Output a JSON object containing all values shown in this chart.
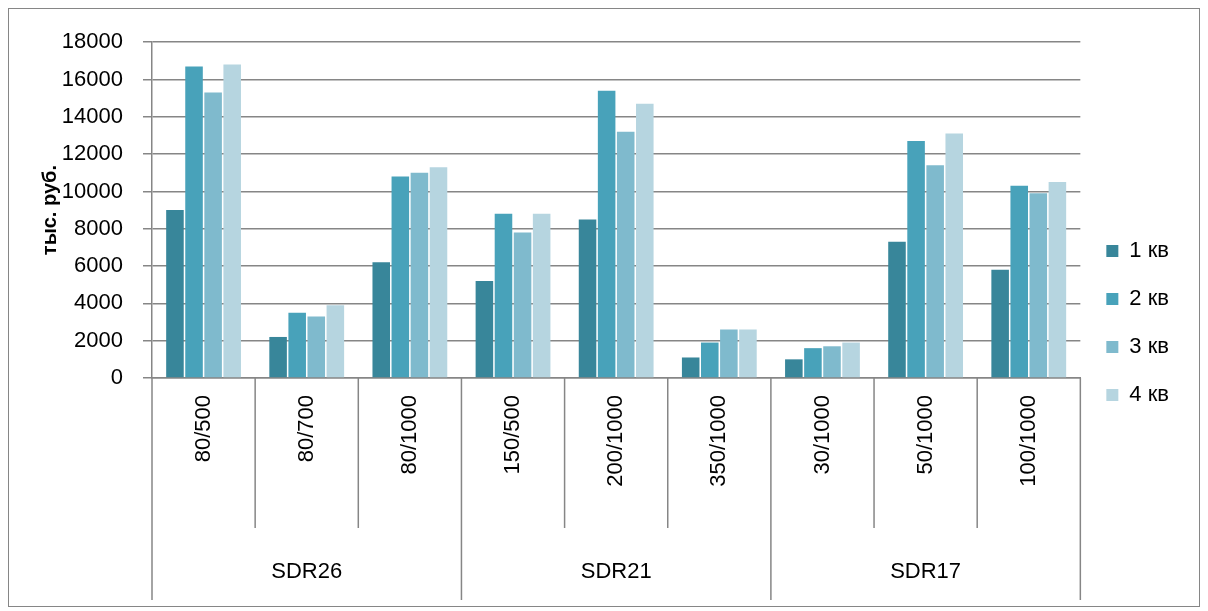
{
  "chart_data": {
    "type": "bar",
    "ylabel": "тыс. руб.",
    "categories": [
      "80/500",
      "80/700",
      "80/1000",
      "150/500",
      "200/1000",
      "350/1000",
      "30/1000",
      "50/1000",
      "100/1000"
    ],
    "series": [
      {
        "name": "1 кв",
        "color": "#38869a",
        "values": [
          9000,
          2200,
          6200,
          5200,
          8500,
          1100,
          1000,
          7300,
          5800
        ]
      },
      {
        "name": "2 кв",
        "color": "#48a2ba",
        "values": [
          16700,
          3500,
          10800,
          8800,
          15400,
          1900,
          1600,
          12700,
          10300
        ]
      },
      {
        "name": "3 кв",
        "color": "#7fbacd",
        "values": [
          15300,
          3300,
          11000,
          7800,
          13200,
          2600,
          1700,
          11400,
          9900
        ]
      },
      {
        "name": "4 кв",
        "color": "#b6d5e0",
        "values": [
          16800,
          3900,
          11300,
          8800,
          14700,
          2600,
          1900,
          13100,
          10500
        ]
      }
    ],
    "ylim": [
      0,
      18000
    ],
    "yticks": [
      0,
      2000,
      4000,
      6000,
      8000,
      10000,
      12000,
      14000,
      16000,
      18000
    ],
    "grid": "y",
    "legend": "right",
    "annotations": [
      "SDR26",
      "SDR21",
      "SDR17"
    ]
  }
}
